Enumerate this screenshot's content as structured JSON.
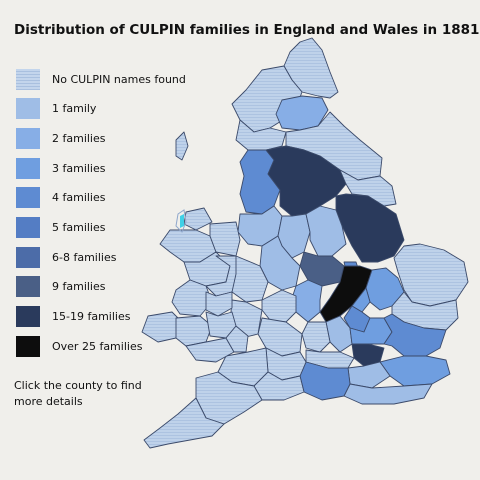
{
  "title": "Distribution of CULPIN families in England and Wales in 1881",
  "legend": [
    {
      "label": "No CULPIN names found",
      "color": "#b9cde6",
      "pattern": true
    },
    {
      "label": "1 family",
      "color": "#9fbde6"
    },
    {
      "label": "2 families",
      "color": "#87aee6"
    },
    {
      "label": "3 families",
      "color": "#6f9ee0"
    },
    {
      "label": "4 families",
      "color": "#5e8bd2"
    },
    {
      "label": " 5 families",
      "color": "#547dc4"
    },
    {
      "label": "6-8 families",
      "color": "#4c6ca8"
    },
    {
      "label": "9 families",
      "color": "#4a5f86"
    },
    {
      "label": "15-19 families",
      "color": "#2a3a5c"
    },
    {
      "label": "Over 25 families",
      "color": "#0d0d0d"
    }
  ],
  "hint": "Click the county to find more details",
  "colors": {
    "background": "#f0efeb",
    "border": "#3b4a6a",
    "coast": "#8fa7cc"
  }
}
